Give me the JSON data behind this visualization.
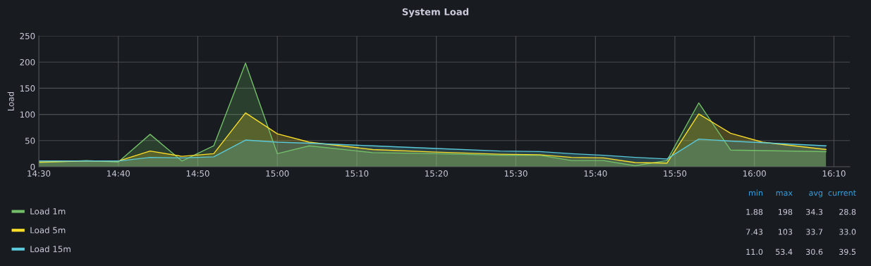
{
  "chart_data": {
    "type": "area",
    "title": "System Load",
    "ylabel": "Load",
    "x": [
      14.5,
      14.6,
      14.6667,
      14.7333,
      14.8,
      14.8667,
      14.9333,
      15.0,
      15.0667,
      15.2,
      15.3333,
      15.4667,
      15.55,
      15.6167,
      15.6833,
      15.75,
      15.8167,
      15.8833,
      15.95,
      16.0167,
      16.15
    ],
    "series": [
      {
        "name": "Load 1m",
        "color": "#73bf69",
        "values": [
          8,
          12,
          9,
          62,
          11,
          40,
          198,
          25,
          40,
          27,
          25,
          22,
          22,
          12,
          12,
          2,
          12,
          122,
          32,
          31,
          29
        ]
      },
      {
        "name": "Load 5m",
        "color": "#fade2a",
        "values": [
          9,
          11,
          11,
          30,
          20,
          25,
          103,
          63,
          47,
          33,
          28,
          24,
          23,
          18,
          17,
          8,
          7,
          101,
          64,
          47,
          33
        ]
      },
      {
        "name": "Load 15m",
        "color": "#5ac8d8",
        "values": [
          11,
          11,
          11,
          18,
          17,
          19,
          51,
          47,
          45,
          40,
          35,
          30,
          29,
          25,
          22,
          18,
          15,
          53,
          49,
          46,
          40
        ]
      }
    ],
    "xlim": [
      14.5,
      16.2
    ],
    "ylim": [
      0,
      250
    ],
    "xticks": [
      {
        "value": 14.5,
        "label": "14:30"
      },
      {
        "value": 14.6667,
        "label": "14:40"
      },
      {
        "value": 14.8333,
        "label": "14:50"
      },
      {
        "value": 15.0,
        "label": "15:00"
      },
      {
        "value": 15.1667,
        "label": "15:10"
      },
      {
        "value": 15.3333,
        "label": "15:20"
      },
      {
        "value": 15.5,
        "label": "15:30"
      },
      {
        "value": 15.6667,
        "label": "15:40"
      },
      {
        "value": 15.8333,
        "label": "15:50"
      },
      {
        "value": 16.0,
        "label": "16:00"
      },
      {
        "value": 16.1667,
        "label": "16:10"
      }
    ],
    "yticks": [
      0,
      50,
      100,
      150,
      200,
      250
    ],
    "grid": true,
    "legend": "bottom",
    "annotations": [
      "min",
      "max",
      "avg",
      "current",
      "1.88",
      "198",
      "34.3",
      "28.8",
      "7.43",
      "103",
      "33.7",
      "33.0",
      "11.0",
      "53.4",
      "30.6",
      "39.5"
    ]
  }
}
